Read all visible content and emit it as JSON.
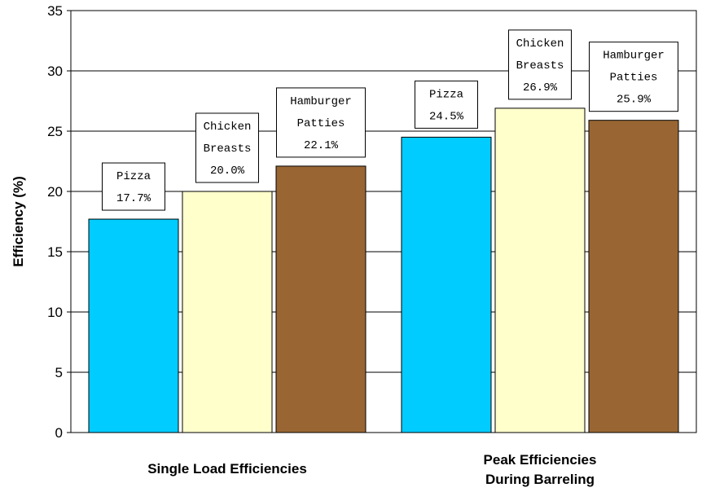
{
  "chart_data": {
    "type": "bar",
    "title": "",
    "xlabel": "",
    "ylabel": "Efficiency (%)",
    "ylim": [
      0,
      35
    ],
    "yticks": [
      0,
      5,
      10,
      15,
      20,
      25,
      30,
      35
    ],
    "grid": true,
    "legend": "none",
    "categories": [
      [
        "Single Load Efficiencies"
      ],
      [
        "Peak Efficiencies",
        "During Barreling"
      ]
    ],
    "series": [
      {
        "name": "Pizza",
        "label_lines": [
          "Pizza"
        ],
        "color": "#00CCFF",
        "values": [
          17.7,
          24.5
        ]
      },
      {
        "name": "Chicken Breasts",
        "label_lines": [
          "Chicken",
          "Breasts"
        ],
        "color": "#FFFFCC",
        "values": [
          20.0,
          26.9
        ]
      },
      {
        "name": "Hamburger Patties",
        "label_lines": [
          "Hamburger",
          "Patties"
        ],
        "color": "#996633",
        "values": [
          22.1,
          25.9
        ]
      }
    ],
    "value_format": "%"
  }
}
